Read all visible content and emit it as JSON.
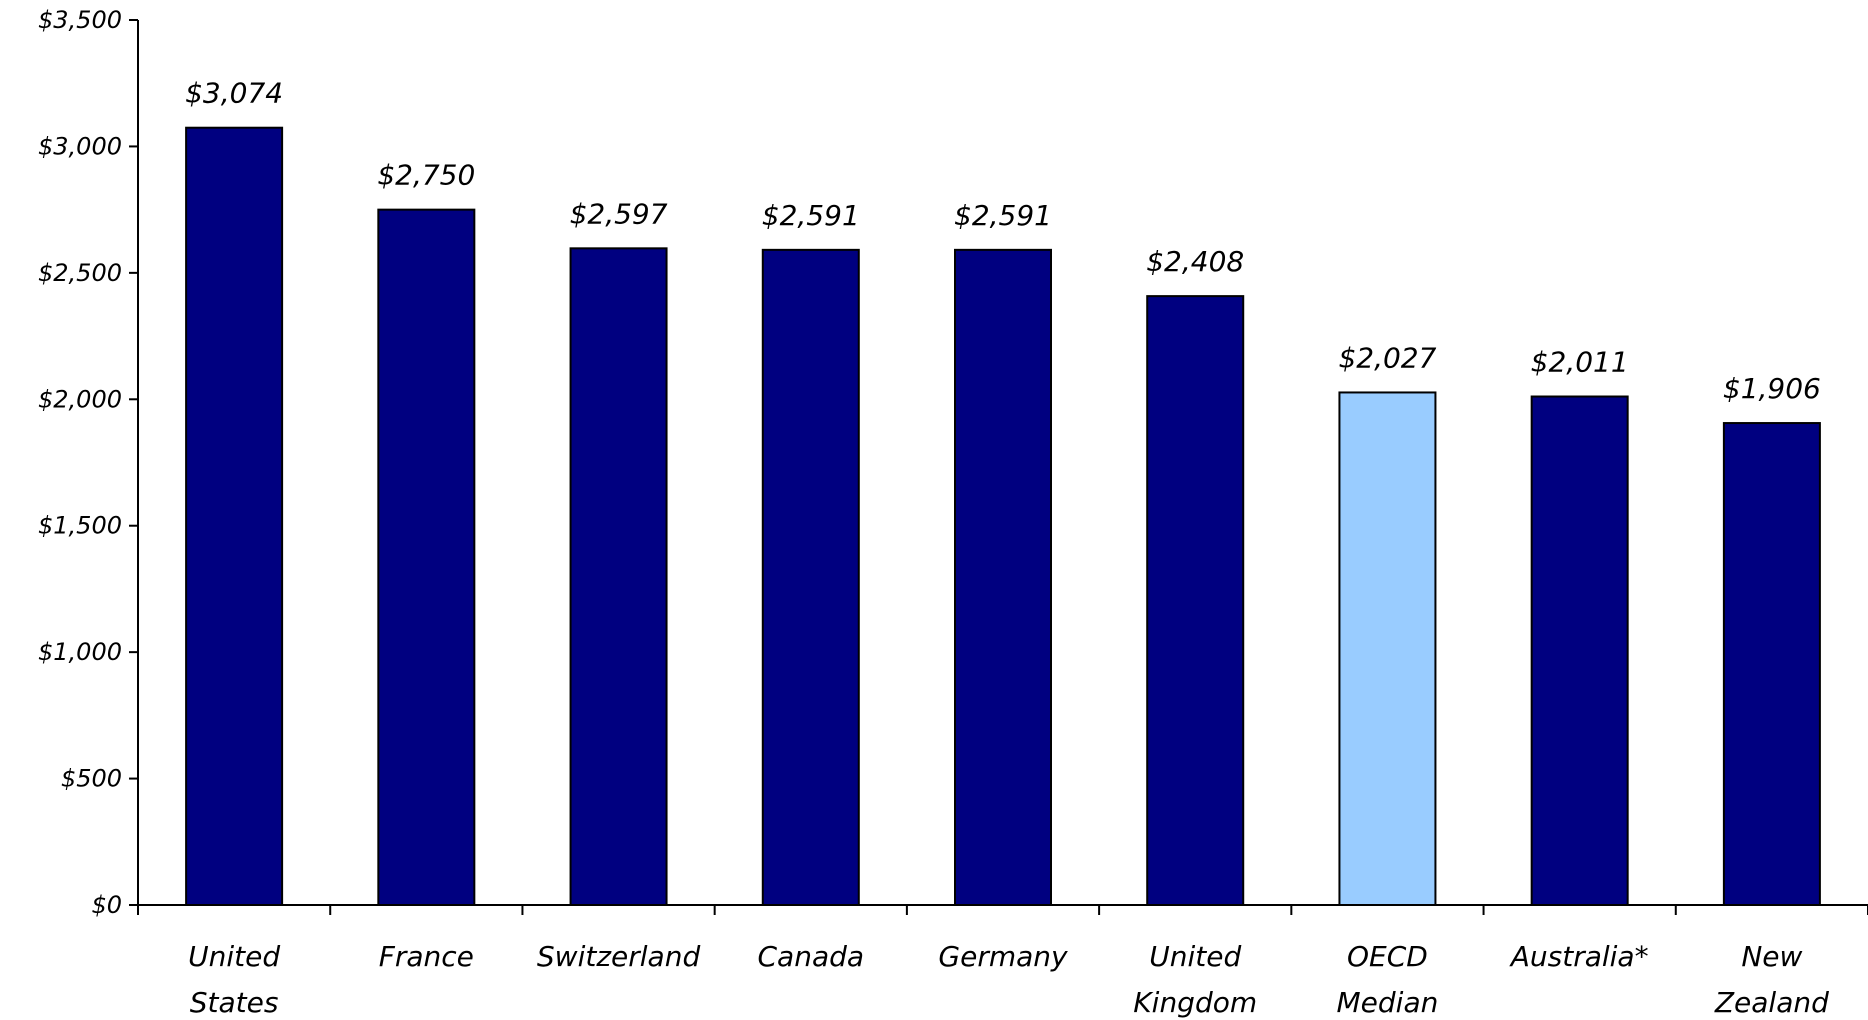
{
  "chart_data": {
    "type": "bar",
    "title": "",
    "xlabel": "",
    "ylabel": "",
    "ylim": [
      0,
      3500
    ],
    "y_ticks": [
      0,
      500,
      1000,
      1500,
      2000,
      2500,
      3000,
      3500
    ],
    "y_tick_labels": [
      "$0",
      "$500",
      "$1,000",
      "$1,500",
      "$2,000",
      "$2,500",
      "$3,000",
      "$3,500"
    ],
    "grid": false,
    "legend": "none",
    "colors": {
      "default": "#000080",
      "highlight": "#99ccff"
    },
    "categories": [
      [
        "United",
        "States"
      ],
      [
        "France"
      ],
      [
        "Switzerland"
      ],
      [
        "Canada"
      ],
      [
        "Germany"
      ],
      [
        "United",
        "Kingdom"
      ],
      [
        "OECD",
        "Median"
      ],
      [
        "Australia*"
      ],
      [
        "New",
        "Zealand"
      ]
    ],
    "values": [
      3074,
      2750,
      2597,
      2591,
      2591,
      2408,
      2027,
      2011,
      1906
    ],
    "value_labels": [
      "$3,074",
      "$2,750",
      "$2,597",
      "$2,591",
      "$2,591",
      "$2,408",
      "$2,027",
      "$2,011",
      "$1,906"
    ],
    "highlight_index": 6
  }
}
